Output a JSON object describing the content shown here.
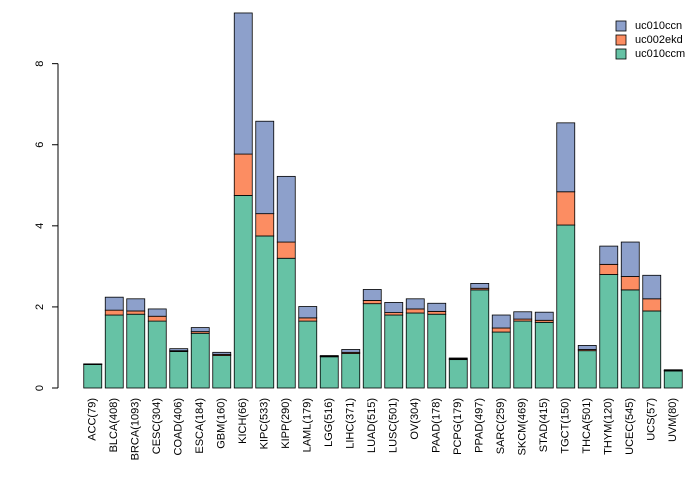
{
  "chart_data": {
    "type": "bar",
    "stacked": true,
    "title": "",
    "xlabel": "",
    "ylabel": "",
    "ylim": [
      0,
      9.2
    ],
    "yticks": [
      0,
      2,
      4,
      6,
      8
    ],
    "categories": [
      "ACC(79)",
      "BLCA(408)",
      "BRCA(1093)",
      "CESC(304)",
      "COAD(406)",
      "ESCA(184)",
      "GBM(160)",
      "KICH(66)",
      "KIPC(533)",
      "KIPP(290)",
      "LAML(179)",
      "LGG(516)",
      "LIHC(371)",
      "LUAD(515)",
      "LUSC(501)",
      "OV(304)",
      "PAAD(178)",
      "PCPG(179)",
      "PPAD(497)",
      "SARC(259)",
      "SKCM(469)",
      "STAD(415)",
      "TGCT(150)",
      "THCA(501)",
      "THYM(120)",
      "UCEC(545)",
      "UCS(57)",
      "UVM(80)"
    ],
    "series": [
      {
        "name": "uc010ccm",
        "color": "#66c2a5",
        "values": [
          0.58,
          1.8,
          1.82,
          1.65,
          0.9,
          1.35,
          0.8,
          4.75,
          3.75,
          3.2,
          1.65,
          0.77,
          0.85,
          2.08,
          1.8,
          1.85,
          1.82,
          0.7,
          2.42,
          1.38,
          1.65,
          1.62,
          4.02,
          0.92,
          2.8,
          2.42,
          1.9,
          0.42
        ]
      },
      {
        "name": "uc002ekd",
        "color": "#fc8d62",
        "values": [
          0.0,
          0.12,
          0.08,
          0.12,
          0.02,
          0.04,
          0.03,
          1.02,
          0.55,
          0.4,
          0.08,
          0.01,
          0.03,
          0.08,
          0.06,
          0.1,
          0.07,
          0.02,
          0.04,
          0.1,
          0.05,
          0.05,
          0.82,
          0.03,
          0.25,
          0.33,
          0.3,
          0.01
        ]
      },
      {
        "name": "uc010ccn",
        "color": "#8da0cb",
        "values": [
          0.0,
          0.32,
          0.3,
          0.18,
          0.05,
          0.1,
          0.05,
          3.48,
          2.28,
          1.62,
          0.28,
          0.02,
          0.07,
          0.27,
          0.25,
          0.25,
          0.2,
          0.02,
          0.12,
          0.32,
          0.18,
          0.2,
          1.7,
          0.1,
          0.45,
          0.85,
          0.58,
          0.02
        ]
      }
    ],
    "legend": {
      "position": "top-right",
      "entries": [
        {
          "label": "uc010ccn",
          "color": "#8da0cb"
        },
        {
          "label": "uc002ekd",
          "color": "#fc8d62"
        },
        {
          "label": "uc010ccm",
          "color": "#66c2a5"
        }
      ]
    },
    "grid": false
  }
}
